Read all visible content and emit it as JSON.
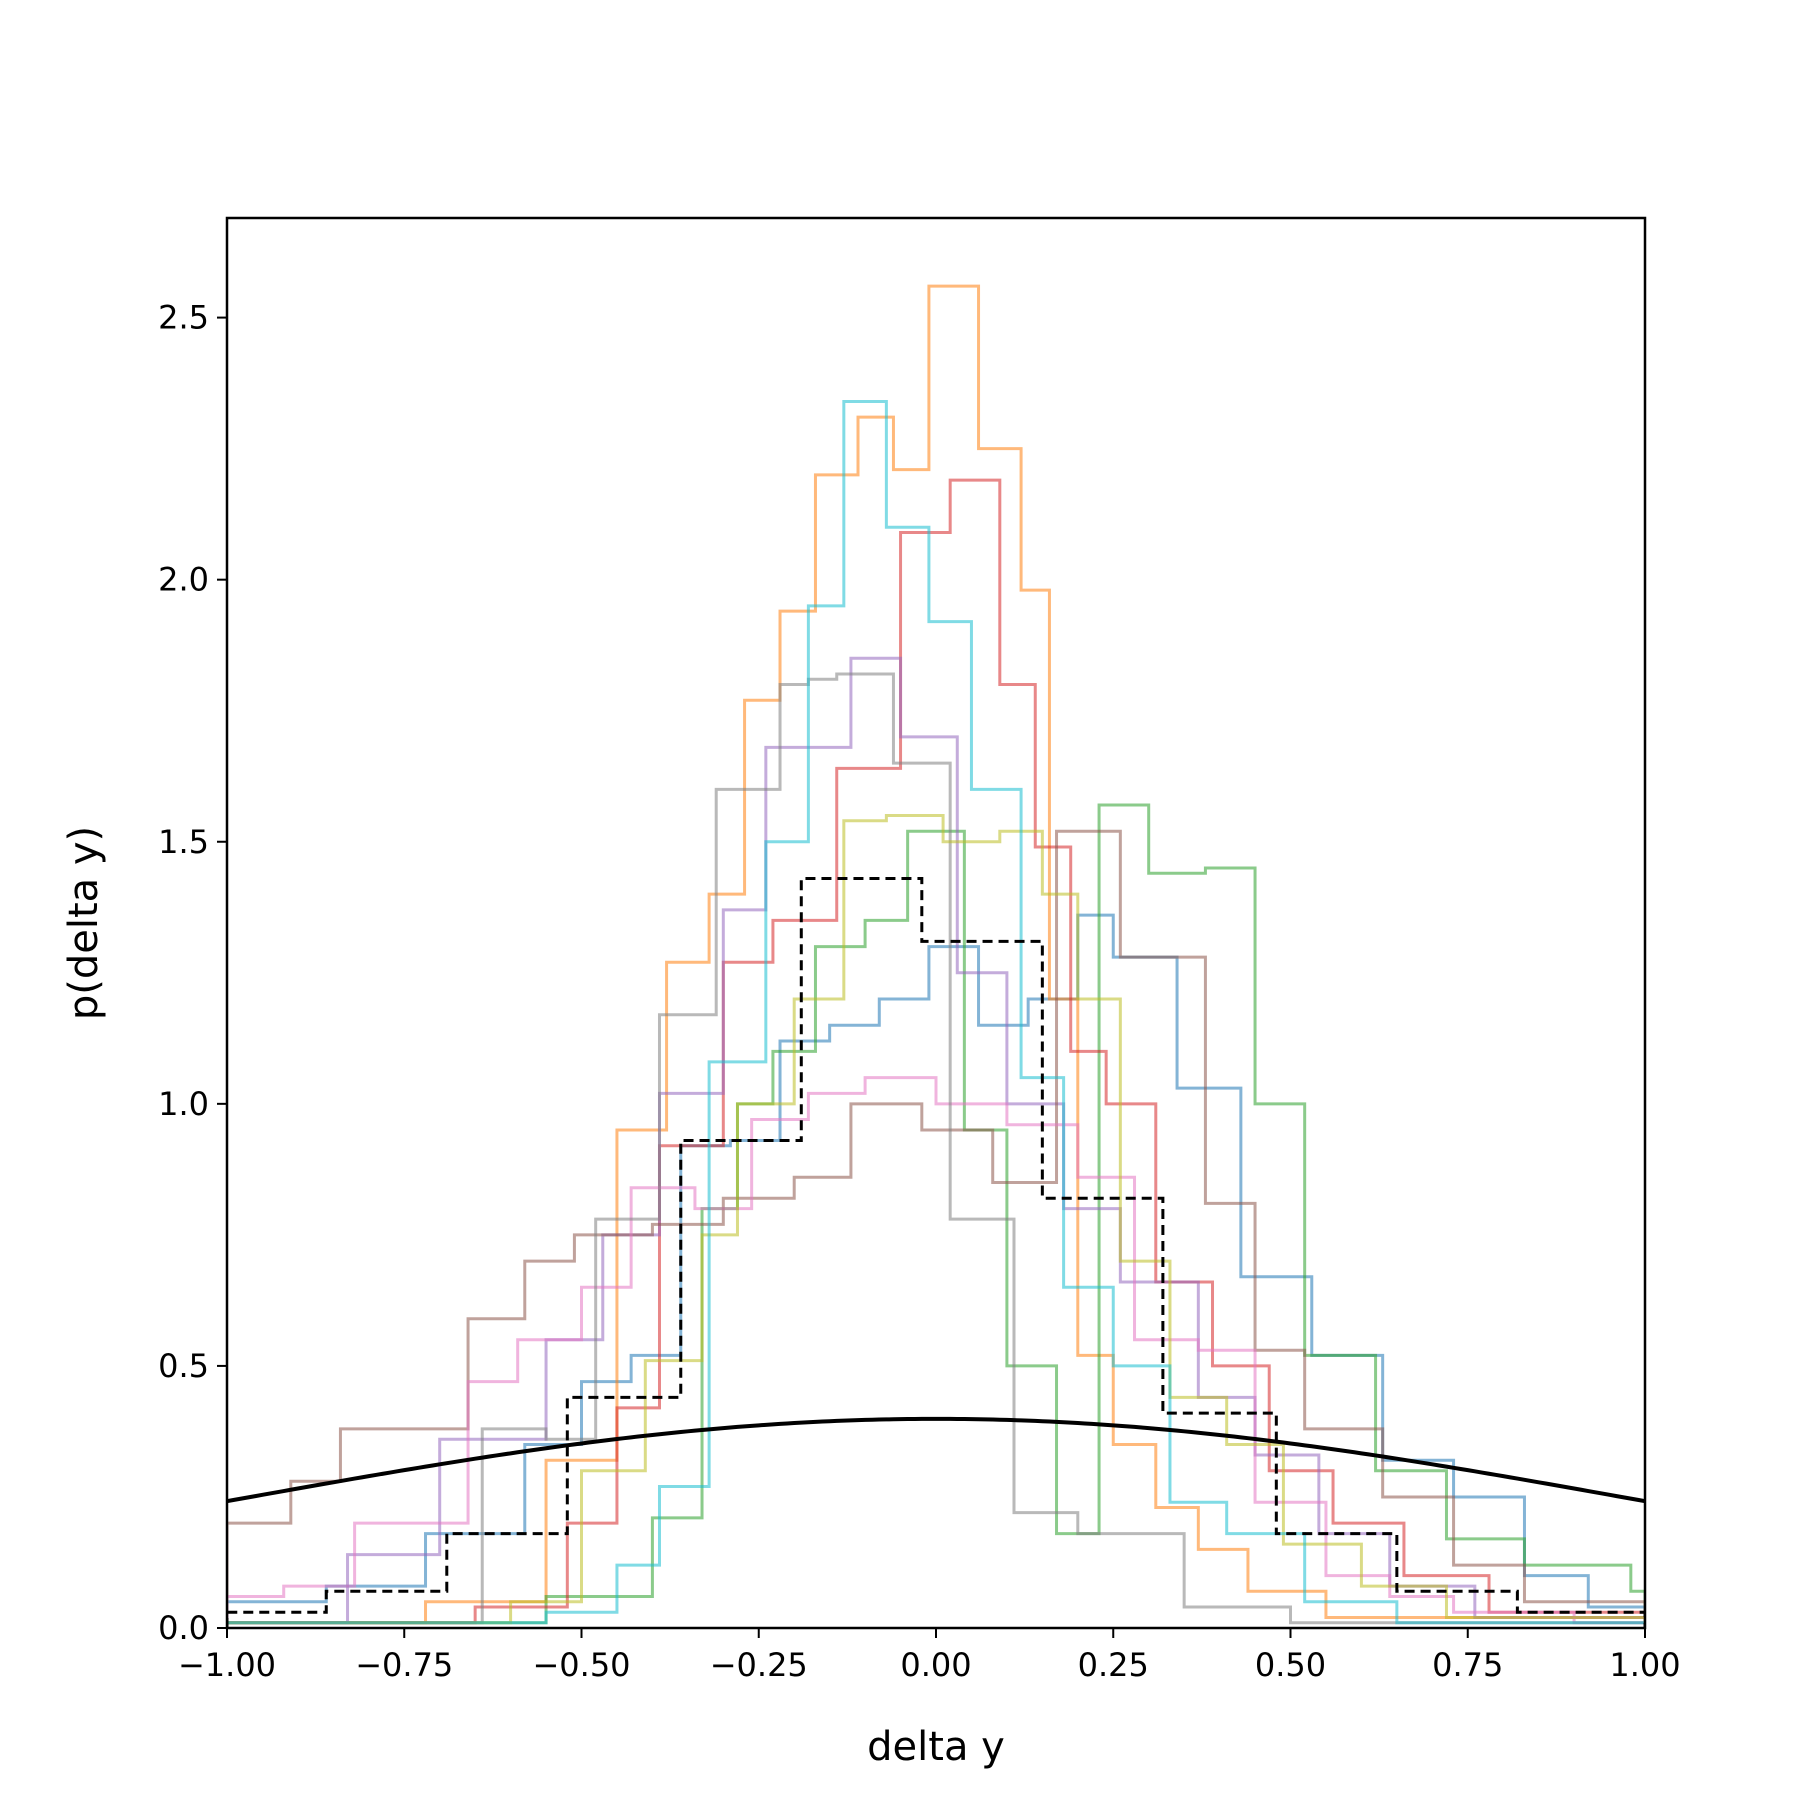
{
  "chart_data": {
    "type": "histogram",
    "xlabel": "delta y",
    "ylabel": "p(delta y)",
    "xlim": [
      -1.0,
      1.0
    ],
    "ylim": [
      0.0,
      2.69
    ],
    "xticks": [
      "−1.00",
      "−0.75",
      "−0.50",
      "−0.25",
      "0.00",
      "0.25",
      "0.50",
      "0.75",
      "1.00"
    ],
    "xtick_values": [
      -1.0,
      -0.75,
      -0.5,
      -0.25,
      0.0,
      0.25,
      0.5,
      0.75,
      1.0
    ],
    "yticks": [
      "0.0",
      "0.5",
      "1.0",
      "1.5",
      "2.0",
      "2.5"
    ],
    "ytick_values": [
      0.0,
      0.5,
      1.0,
      1.5,
      2.0,
      2.5
    ],
    "grid": false,
    "legend": "none",
    "series": [
      {
        "color": "#1f77b4",
        "edges": [
          -1.0,
          -0.86,
          -0.72,
          -0.58,
          -0.5,
          -0.43,
          -0.36,
          -0.29,
          -0.22,
          -0.15,
          -0.08,
          -0.01,
          0.06,
          0.13,
          0.2,
          0.25,
          0.34,
          0.43,
          0.53,
          0.63,
          0.73,
          0.83,
          0.92,
          1.0
        ],
        "values": [
          0.05,
          0.08,
          0.18,
          0.35,
          0.47,
          0.52,
          0.92,
          0.93,
          1.12,
          1.15,
          1.2,
          1.3,
          1.15,
          1.2,
          1.36,
          1.28,
          1.03,
          0.67,
          0.52,
          0.32,
          0.25,
          0.1,
          0.04
        ]
      },
      {
        "color": "#ff7f0e",
        "edges": [
          -1.0,
          -0.72,
          -0.55,
          -0.45,
          -0.38,
          -0.32,
          -0.27,
          -0.22,
          -0.17,
          -0.11,
          -0.06,
          -0.01,
          0.06,
          0.12,
          0.16,
          0.2,
          0.25,
          0.31,
          0.37,
          0.44,
          0.55,
          1.0
        ],
        "values": [
          0.01,
          0.05,
          0.32,
          0.95,
          1.27,
          1.4,
          1.77,
          1.94,
          2.2,
          2.31,
          2.21,
          2.56,
          2.25,
          1.98,
          1.2,
          0.52,
          0.35,
          0.23,
          0.15,
          0.07,
          0.02
        ]
      },
      {
        "color": "#2ca02c",
        "edges": [
          -1.0,
          -0.55,
          -0.4,
          -0.33,
          -0.28,
          -0.23,
          -0.17,
          -0.1,
          -0.04,
          0.04,
          0.1,
          0.17,
          0.23,
          0.3,
          0.38,
          0.45,
          0.52,
          0.62,
          0.72,
          0.83,
          0.98,
          1.0
        ],
        "values": [
          0.01,
          0.06,
          0.21,
          0.8,
          1.0,
          1.1,
          1.3,
          1.35,
          1.52,
          0.95,
          0.5,
          0.18,
          1.57,
          1.44,
          1.45,
          1.0,
          0.52,
          0.3,
          0.17,
          0.12,
          0.07
        ]
      },
      {
        "color": "#d62728",
        "edges": [
          -1.0,
          -0.65,
          -0.52,
          -0.45,
          -0.39,
          -0.3,
          -0.23,
          -0.14,
          -0.05,
          0.02,
          0.09,
          0.14,
          0.19,
          0.24,
          0.31,
          0.39,
          0.47,
          0.56,
          0.66,
          0.78,
          1.0
        ],
        "values": [
          0.01,
          0.04,
          0.2,
          0.42,
          0.92,
          1.27,
          1.35,
          1.64,
          2.09,
          2.19,
          1.8,
          1.49,
          1.1,
          1.0,
          0.66,
          0.5,
          0.3,
          0.2,
          0.1,
          0.03
        ]
      },
      {
        "color": "#9467bd",
        "edges": [
          -1.0,
          -0.83,
          -0.7,
          -0.55,
          -0.47,
          -0.39,
          -0.3,
          -0.24,
          -0.12,
          -0.05,
          0.03,
          0.1,
          0.18,
          0.26,
          0.37,
          0.45,
          0.54,
          0.64,
          0.76,
          1.0
        ],
        "values": [
          0.01,
          0.14,
          0.36,
          0.55,
          0.75,
          1.02,
          1.37,
          1.68,
          1.85,
          1.7,
          1.25,
          1.0,
          0.8,
          0.66,
          0.44,
          0.33,
          0.18,
          0.08,
          0.02
        ]
      },
      {
        "color": "#8c564b",
        "edges": [
          -1.0,
          -0.91,
          -0.84,
          -0.66,
          -0.58,
          -0.51,
          -0.4,
          -0.3,
          -0.2,
          -0.12,
          -0.02,
          0.08,
          0.17,
          0.26,
          0.38,
          0.45,
          0.52,
          0.63,
          0.73,
          0.83,
          1.0
        ],
        "values": [
          0.2,
          0.28,
          0.38,
          0.59,
          0.7,
          0.75,
          0.77,
          0.82,
          0.86,
          1.0,
          0.95,
          0.85,
          1.52,
          1.28,
          0.81,
          0.53,
          0.38,
          0.25,
          0.12,
          0.05
        ]
      },
      {
        "color": "#e377c2",
        "edges": [
          -1.0,
          -0.92,
          -0.82,
          -0.66,
          -0.59,
          -0.5,
          -0.43,
          -0.34,
          -0.26,
          -0.18,
          -0.1,
          0.0,
          0.1,
          0.2,
          0.28,
          0.37,
          0.45,
          0.55,
          0.64,
          0.73,
          0.9,
          1.0
        ],
        "values": [
          0.06,
          0.08,
          0.2,
          0.47,
          0.55,
          0.65,
          0.84,
          0.8,
          0.97,
          1.02,
          1.05,
          1.0,
          0.96,
          0.86,
          0.55,
          0.53,
          0.24,
          0.1,
          0.06,
          0.03,
          0.01
        ]
      },
      {
        "color": "#7f7f7f",
        "edges": [
          -1.0,
          -0.64,
          -0.55,
          -0.48,
          -0.39,
          -0.31,
          -0.22,
          -0.18,
          -0.14,
          -0.06,
          0.02,
          0.11,
          0.2,
          0.35,
          0.5,
          1.0
        ],
        "values": [
          0.01,
          0.38,
          0.36,
          0.78,
          1.17,
          1.6,
          1.8,
          1.81,
          1.82,
          1.65,
          0.78,
          0.22,
          0.18,
          0.04,
          0.01
        ]
      },
      {
        "color": "#bcbd22",
        "edges": [
          -1.0,
          -0.6,
          -0.5,
          -0.41,
          -0.33,
          -0.28,
          -0.2,
          -0.13,
          -0.07,
          0.01,
          0.09,
          0.15,
          0.2,
          0.26,
          0.33,
          0.41,
          0.49,
          0.6,
          0.72,
          1.0
        ],
        "values": [
          0.01,
          0.05,
          0.3,
          0.51,
          0.75,
          1.0,
          1.2,
          1.54,
          1.55,
          1.5,
          1.52,
          1.4,
          1.2,
          0.7,
          0.44,
          0.35,
          0.16,
          0.08,
          0.02
        ]
      },
      {
        "color": "#17becf",
        "edges": [
          -1.0,
          -0.55,
          -0.45,
          -0.39,
          -0.32,
          -0.24,
          -0.18,
          -0.13,
          -0.07,
          -0.01,
          0.05,
          0.12,
          0.18,
          0.25,
          0.33,
          0.41,
          0.52,
          0.65,
          1.0
        ],
        "values": [
          0.01,
          0.03,
          0.12,
          0.27,
          1.08,
          1.5,
          1.95,
          2.34,
          2.1,
          1.92,
          1.6,
          1.05,
          0.65,
          0.5,
          0.24,
          0.18,
          0.05,
          0.01
        ]
      },
      {
        "color": "#000000",
        "dashed": true,
        "edges": [
          -1.0,
          -0.86,
          -0.69,
          -0.52,
          -0.36,
          -0.19,
          -0.02,
          0.15,
          0.32,
          0.48,
          0.65,
          0.82,
          1.0
        ],
        "values": [
          0.03,
          0.07,
          0.18,
          0.44,
          0.93,
          1.43,
          1.31,
          0.82,
          0.41,
          0.18,
          0.07,
          0.03
        ]
      },
      {
        "type": "line",
        "color": "#000000",
        "function": "normal_pdf",
        "mean": 0.0,
        "std": 1.0
      }
    ]
  }
}
